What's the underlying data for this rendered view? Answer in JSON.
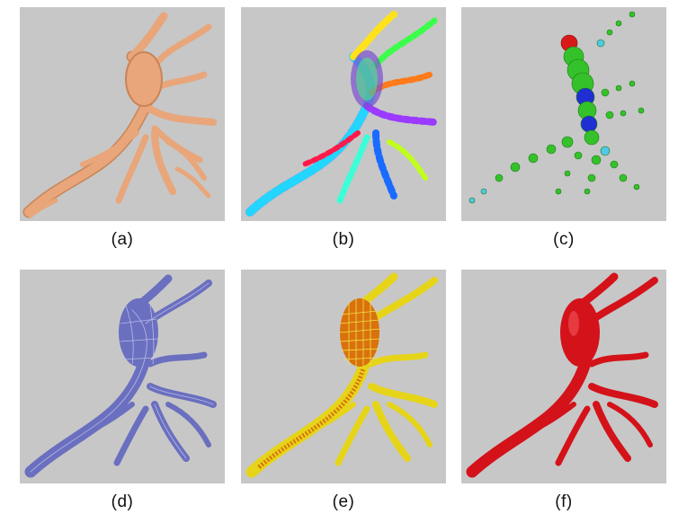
{
  "figure": {
    "panels": [
      {
        "label": "(a)",
        "description_color": "#e8a67a"
      },
      {
        "label": "(b)",
        "description_color": "multicolor"
      },
      {
        "label": "(c)",
        "description_color": "#35c12a"
      },
      {
        "label": "(d)",
        "description_color": "#6a6fbf"
      },
      {
        "label": "(e)",
        "description_color": "#e6d419"
      },
      {
        "label": "(f)",
        "description_color": "#d4121a"
      }
    ]
  },
  "colors": {
    "background": "#c7c7c7",
    "peach": "#e8a67a",
    "peach_dark": "#c98457",
    "green": "#35c12a",
    "blue": "#1f2fd1",
    "cyan": "#4fc9e6",
    "red_cap": "#d61a1a",
    "purple": "#6a6fbf",
    "purple_line": "#b9bce8",
    "yellow": "#e6d419",
    "orange_mesh": "#d9720c",
    "red": "#d4121a"
  }
}
